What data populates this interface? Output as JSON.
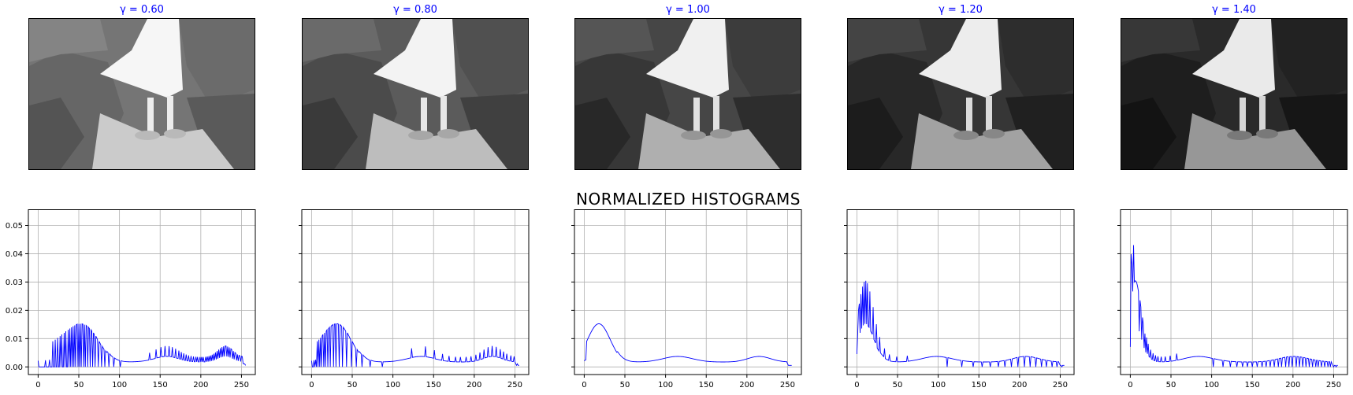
{
  "suptitle": "NORMALIZED HISTOGRAMS",
  "line_color": "#0000ff",
  "chart_data": [
    {
      "type": "line",
      "title": "γ = 0.60",
      "gamma": 0.6,
      "xlim": [
        -12,
        267
      ],
      "ylim": [
        -0.0027,
        0.0557
      ],
      "xticks": [
        0,
        50,
        100,
        150,
        200,
        250
      ],
      "yticks": [
        0.0,
        0.01,
        0.02,
        0.03,
        0.04,
        0.05
      ],
      "ytick_labels": [
        "0.00",
        "0.01",
        "0.02",
        "0.03",
        "0.04",
        "0.05"
      ],
      "grid": true
    },
    {
      "type": "line",
      "title": "γ = 0.80",
      "gamma": 0.8,
      "xlim": [
        -12,
        267
      ],
      "ylim": [
        -0.0027,
        0.0557
      ],
      "xticks": [
        0,
        50,
        100,
        150,
        200,
        250
      ],
      "yticks": [
        0.0,
        0.01,
        0.02,
        0.03,
        0.04,
        0.05
      ],
      "grid": true
    },
    {
      "type": "line",
      "title": "γ = 1.00",
      "gamma": 1.0,
      "xlim": [
        -12,
        267
      ],
      "ylim": [
        -0.0027,
        0.0557
      ],
      "xticks": [
        0,
        50,
        100,
        150,
        200,
        250
      ],
      "yticks": [
        0.0,
        0.01,
        0.02,
        0.03,
        0.04,
        0.05
      ],
      "grid": true
    },
    {
      "type": "line",
      "title": "γ = 1.20",
      "gamma": 1.2,
      "xlim": [
        -12,
        267
      ],
      "ylim": [
        -0.0027,
        0.0557
      ],
      "xticks": [
        0,
        50,
        100,
        150,
        200,
        250
      ],
      "yticks": [
        0.0,
        0.01,
        0.02,
        0.03,
        0.04,
        0.05
      ],
      "grid": true
    },
    {
      "type": "line",
      "title": "γ = 1.40",
      "gamma": 1.4,
      "xlim": [
        -12,
        267
      ],
      "ylim": [
        -0.0027,
        0.0557
      ],
      "xticks": [
        0,
        50,
        100,
        150,
        200,
        250
      ],
      "yticks": [
        0.0,
        0.01,
        0.02,
        0.03,
        0.04,
        0.05
      ],
      "grid": true
    }
  ],
  "base_histogram": {
    "description_free_note": "",
    "components": [
      {
        "center": 18,
        "width": 14,
        "height": 0.0215
      },
      {
        "center": 115,
        "width": 18,
        "height": 0.003
      },
      {
        "center": 215,
        "width": 14,
        "height": 0.003
      },
      {
        "floor": 0.0026
      }
    ]
  }
}
